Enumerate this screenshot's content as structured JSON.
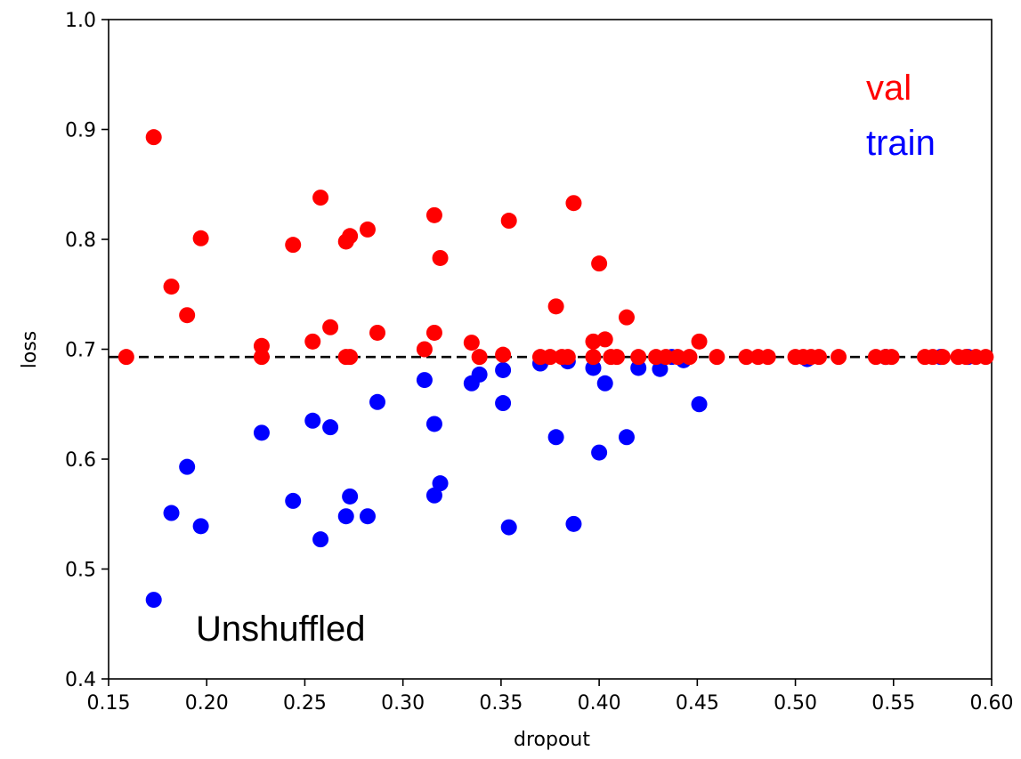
{
  "chart_data": {
    "type": "scatter",
    "title": "",
    "xlabel": "dropout",
    "ylabel": "loss",
    "xlim": [
      0.15,
      0.6
    ],
    "ylim": [
      0.4,
      1.0
    ],
    "xticks": [
      "0.15",
      "0.20",
      "0.25",
      "0.30",
      "0.35",
      "0.40",
      "0.45",
      "0.50",
      "0.55",
      "0.60"
    ],
    "yticks": [
      "0.4",
      "0.5",
      "0.6",
      "0.7",
      "0.8",
      "0.9",
      "1.0"
    ],
    "grid": false,
    "reference_line": {
      "y": 0.693,
      "style": "dashed",
      "color": "#000000"
    },
    "annotations": [
      {
        "text": "val",
        "color": "#ff0000"
      },
      {
        "text": "train",
        "color": "#0000ff"
      },
      {
        "text": "Unshuffled",
        "color": "#000000"
      }
    ],
    "series": [
      {
        "name": "train",
        "color": "#0000ff",
        "points": [
          [
            0.173,
            0.472
          ],
          [
            0.182,
            0.551
          ],
          [
            0.19,
            0.593
          ],
          [
            0.197,
            0.539
          ],
          [
            0.228,
            0.624
          ],
          [
            0.244,
            0.562
          ],
          [
            0.254,
            0.635
          ],
          [
            0.258,
            0.527
          ],
          [
            0.263,
            0.629
          ],
          [
            0.271,
            0.548
          ],
          [
            0.273,
            0.566
          ],
          [
            0.282,
            0.548
          ],
          [
            0.287,
            0.652
          ],
          [
            0.311,
            0.672
          ],
          [
            0.316,
            0.632
          ],
          [
            0.316,
            0.567
          ],
          [
            0.319,
            0.578
          ],
          [
            0.335,
            0.669
          ],
          [
            0.339,
            0.677
          ],
          [
            0.351,
            0.681
          ],
          [
            0.351,
            0.651
          ],
          [
            0.354,
            0.538
          ],
          [
            0.37,
            0.687
          ],
          [
            0.378,
            0.62
          ],
          [
            0.384,
            0.689
          ],
          [
            0.387,
            0.541
          ],
          [
            0.397,
            0.683
          ],
          [
            0.4,
            0.606
          ],
          [
            0.403,
            0.669
          ],
          [
            0.414,
            0.62
          ],
          [
            0.42,
            0.683
          ],
          [
            0.431,
            0.682
          ],
          [
            0.437,
            0.693
          ],
          [
            0.443,
            0.69
          ],
          [
            0.451,
            0.65
          ],
          [
            0.506,
            0.691
          ],
          [
            0.546,
            0.693
          ],
          [
            0.574,
            0.693
          ],
          [
            0.588,
            0.693
          ]
        ]
      },
      {
        "name": "val",
        "color": "#ff0000",
        "points": [
          [
            0.159,
            0.693
          ],
          [
            0.173,
            0.893
          ],
          [
            0.182,
            0.757
          ],
          [
            0.19,
            0.731
          ],
          [
            0.197,
            0.801
          ],
          [
            0.228,
            0.693
          ],
          [
            0.228,
            0.703
          ],
          [
            0.244,
            0.795
          ],
          [
            0.254,
            0.707
          ],
          [
            0.258,
            0.838
          ],
          [
            0.263,
            0.72
          ],
          [
            0.271,
            0.798
          ],
          [
            0.271,
            0.693
          ],
          [
            0.273,
            0.803
          ],
          [
            0.273,
            0.693
          ],
          [
            0.282,
            0.809
          ],
          [
            0.287,
            0.715
          ],
          [
            0.311,
            0.7
          ],
          [
            0.316,
            0.715
          ],
          [
            0.316,
            0.822
          ],
          [
            0.319,
            0.783
          ],
          [
            0.335,
            0.706
          ],
          [
            0.339,
            0.693
          ],
          [
            0.351,
            0.695
          ],
          [
            0.354,
            0.817
          ],
          [
            0.37,
            0.693
          ],
          [
            0.375,
            0.693
          ],
          [
            0.378,
            0.739
          ],
          [
            0.381,
            0.693
          ],
          [
            0.384,
            0.693
          ],
          [
            0.387,
            0.833
          ],
          [
            0.397,
            0.707
          ],
          [
            0.397,
            0.693
          ],
          [
            0.4,
            0.778
          ],
          [
            0.403,
            0.709
          ],
          [
            0.406,
            0.693
          ],
          [
            0.409,
            0.693
          ],
          [
            0.414,
            0.729
          ],
          [
            0.42,
            0.693
          ],
          [
            0.429,
            0.693
          ],
          [
            0.434,
            0.693
          ],
          [
            0.44,
            0.693
          ],
          [
            0.446,
            0.693
          ],
          [
            0.451,
            0.707
          ],
          [
            0.46,
            0.693
          ],
          [
            0.475,
            0.693
          ],
          [
            0.481,
            0.693
          ],
          [
            0.486,
            0.693
          ],
          [
            0.5,
            0.693
          ],
          [
            0.504,
            0.693
          ],
          [
            0.508,
            0.693
          ],
          [
            0.512,
            0.693
          ],
          [
            0.522,
            0.693
          ],
          [
            0.541,
            0.693
          ],
          [
            0.546,
            0.693
          ],
          [
            0.549,
            0.693
          ],
          [
            0.566,
            0.693
          ],
          [
            0.57,
            0.693
          ],
          [
            0.575,
            0.693
          ],
          [
            0.583,
            0.693
          ],
          [
            0.587,
            0.693
          ],
          [
            0.592,
            0.693
          ],
          [
            0.597,
            0.693
          ]
        ]
      }
    ]
  }
}
